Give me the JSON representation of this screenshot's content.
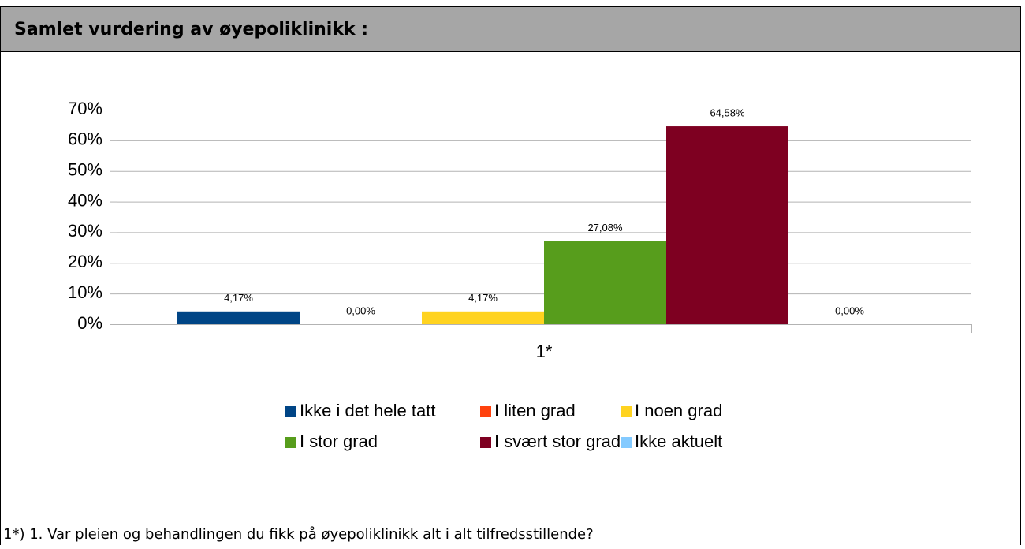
{
  "chart_data": {
    "type": "bar",
    "title": "Samlet vurdering av øyepoliklinikk :",
    "caption": "1*) 1. Var pleien og behandlingen du fikk på øyepoliklinikk alt i alt tilfredsstillende?",
    "categories": [
      "1*"
    ],
    "series": [
      {
        "name": "Ikke i det hele tatt",
        "color": "#004586",
        "values": [
          4.17
        ],
        "value_labels": [
          "4,17%"
        ]
      },
      {
        "name": "I liten grad",
        "color": "#ff420e",
        "values": [
          0
        ],
        "value_labels": [
          "0,00%"
        ]
      },
      {
        "name": "I noen grad",
        "color": "#ffd320",
        "values": [
          4.17
        ],
        "value_labels": [
          "4,17%"
        ]
      },
      {
        "name": "I stor grad",
        "color": "#579d1c",
        "values": [
          27.08
        ],
        "value_labels": [
          "27,08%"
        ]
      },
      {
        "name": "I svært stor grad",
        "color": "#7e0021",
        "values": [
          64.58
        ],
        "value_labels": [
          "64,58%"
        ]
      },
      {
        "name": "Ikke aktuelt",
        "color": "#83caff",
        "values": [
          0
        ],
        "value_labels": [
          "0,00%"
        ]
      }
    ],
    "ylim": [
      0,
      70
    ],
    "yticks": [
      {
        "value": 0,
        "label": "0%"
      },
      {
        "value": 10,
        "label": "10%"
      },
      {
        "value": 20,
        "label": "20%"
      },
      {
        "value": 30,
        "label": "30%"
      },
      {
        "value": 40,
        "label": "40%"
      },
      {
        "value": 50,
        "label": "50%"
      },
      {
        "value": 60,
        "label": "60%"
      },
      {
        "value": 70,
        "label": "70%"
      }
    ],
    "grid": true,
    "legend": "bottom"
  }
}
